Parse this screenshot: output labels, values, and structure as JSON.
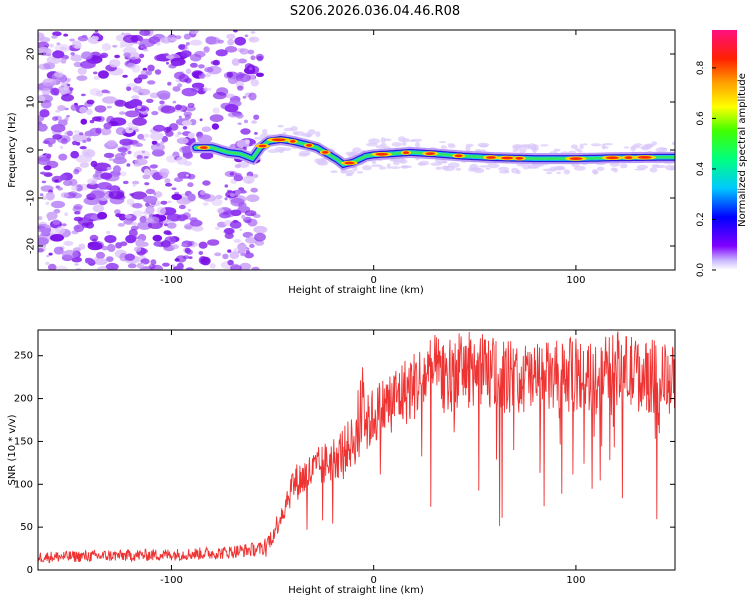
{
  "title": "S206.2026.036.04.46.R08",
  "chart_data": [
    {
      "type": "heatmap",
      "name": "spectrogram",
      "xlabel": "Height of straight line (km)",
      "ylabel": "Frequency (Hz)",
      "xlim": [
        -166,
        149
      ],
      "ylim": [
        -25,
        25
      ],
      "xticks": [
        -100,
        0,
        100
      ],
      "yticks": [
        -20,
        -10,
        0,
        10,
        20
      ],
      "noise_region_x": [
        -166,
        -56
      ],
      "signal_ridge": {
        "x": [
          -88,
          -80,
          -72,
          -66,
          -60,
          -56,
          -52,
          -46,
          -40,
          -34,
          -28,
          -22,
          -18,
          -15,
          -10,
          -4,
          0,
          8,
          18,
          30,
          45,
          60,
          80,
          100,
          120,
          149
        ],
        "y": [
          0.5,
          0.5,
          -0.5,
          -0.8,
          -1.8,
          0.5,
          1.8,
          2.2,
          1.8,
          1.2,
          0.5,
          -1.0,
          -2.0,
          -3.0,
          -2.5,
          -1.3,
          -1.0,
          -0.8,
          -0.5,
          -0.8,
          -1.3,
          -1.6,
          -1.8,
          -1.8,
          -1.6,
          -1.5
        ]
      },
      "colorbar": {
        "label": "Normalized spectral amplitude",
        "range": [
          0.0,
          0.95
        ],
        "ticks": [
          0.0,
          0.2,
          0.4,
          0.6,
          0.8
        ],
        "tick_labels": [
          "0.0",
          "0.2",
          "0.4",
          "0.6",
          "0.8"
        ]
      }
    },
    {
      "type": "line",
      "name": "snr",
      "xlabel": "Height of straight line (km)",
      "ylabel": "SNR (10 * v/v)",
      "xlim": [
        -166,
        149
      ],
      "ylim": [
        0,
        280
      ],
      "xticks": [
        -100,
        0,
        100
      ],
      "yticks": [
        0,
        50,
        100,
        150,
        200,
        250
      ],
      "color": "#ee3333",
      "envelope": {
        "x": [
          -166,
          -100,
          -75,
          -55,
          -50,
          -45,
          -40,
          -30,
          -20,
          -10,
          -5,
          0,
          10,
          20,
          25,
          30,
          40,
          50,
          60,
          70,
          80,
          90,
          100,
          110,
          115,
          120,
          130,
          140,
          149
        ],
        "y": [
          15,
          18,
          20,
          25,
          40,
          70,
          100,
          115,
          130,
          150,
          165,
          180,
          200,
          215,
          225,
          230,
          232,
          235,
          228,
          225,
          222,
          225,
          228,
          222,
          245,
          235,
          228,
          225,
          220
        ]
      }
    }
  ]
}
